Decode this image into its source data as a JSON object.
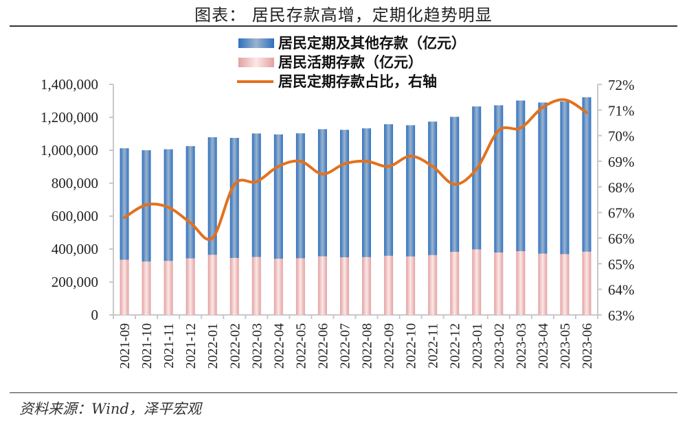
{
  "title": "图表： 居民存款高增，定期化趋势明显",
  "source": "资料来源：Wind，泽平宏观",
  "colors": {
    "time_deposit": "#3a78c4",
    "demand_deposit": "#f0b8b8",
    "ratio_line": "#e2711d"
  },
  "chart_data": {
    "type": "bar+line",
    "stacked": true,
    "categories": [
      "2021-09",
      "2021-10",
      "2021-11",
      "2021-12",
      "2022-01",
      "2022-02",
      "2022-03",
      "2022-04",
      "2022-05",
      "2022-06",
      "2022-07",
      "2022-08",
      "2022-09",
      "2022-10",
      "2022-11",
      "2022-12",
      "2023-01",
      "2023-02",
      "2023-03",
      "2023-04",
      "2023-05",
      "2023-06"
    ],
    "series": [
      {
        "name": "居民活期存款（亿元）",
        "type": "bar",
        "axis": "left",
        "values": [
          335000,
          324000,
          328000,
          343000,
          365000,
          346000,
          352000,
          341000,
          344000,
          356000,
          350000,
          351000,
          359000,
          355000,
          363000,
          383000,
          398000,
          379000,
          387000,
          372000,
          369000,
          384000
        ]
      },
      {
        "name": "居民定期及其他存款（亿元）",
        "type": "bar",
        "axis": "left",
        "values": [
          677000,
          676000,
          678000,
          682000,
          714000,
          729000,
          750000,
          755000,
          759000,
          772000,
          774000,
          782000,
          799000,
          797000,
          811000,
          820000,
          868000,
          894000,
          915000,
          918000,
          927000,
          938000
        ]
      },
      {
        "name": "居民定期存款占比，右轴",
        "type": "line",
        "axis": "right",
        "values": [
          66.8,
          67.3,
          67.2,
          66.6,
          66.0,
          68.1,
          68.2,
          68.8,
          69.0,
          68.5,
          68.9,
          69.0,
          68.8,
          69.2,
          68.8,
          68.1,
          68.7,
          70.2,
          70.3,
          71.1,
          71.4,
          70.9
        ]
      }
    ],
    "left_axis": {
      "ylim": [
        0,
        1400000
      ],
      "ticks": [
        "0",
        "200,000",
        "400,000",
        "600,000",
        "800,000",
        "1,000,000",
        "1,200,000",
        "1,400,000"
      ]
    },
    "right_axis": {
      "ylim": [
        63,
        72
      ],
      "ticks": [
        "63%",
        "64%",
        "65%",
        "66%",
        "67%",
        "68%",
        "69%",
        "70%",
        "71%",
        "72%"
      ]
    },
    "legend_placement": "top-center",
    "grid": false
  }
}
